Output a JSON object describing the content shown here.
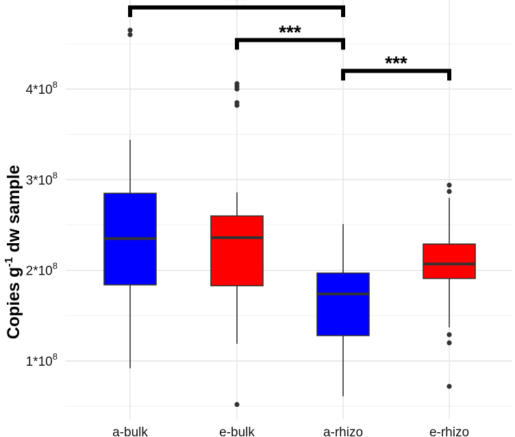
{
  "chart_data": {
    "type": "boxplot",
    "title": "",
    "xlabel": "",
    "ylabel": {
      "main": "Copies g",
      "superscript": "-1",
      "rest": " dw sample"
    },
    "ylim": [
      40000000,
      500000000
    ],
    "grid": true,
    "major_ticks": [
      100000000,
      200000000,
      300000000,
      400000000
    ],
    "minor_ticks": [
      50000000,
      150000000,
      250000000,
      350000000,
      450000000
    ],
    "tick_labels": [
      {
        "value": 100000000,
        "base": "1*10",
        "exp": "8"
      },
      {
        "value": 200000000,
        "base": "2*10",
        "exp": "8"
      },
      {
        "value": 300000000,
        "base": "3*10",
        "exp": "8"
      },
      {
        "value": 400000000,
        "base": "4*10",
        "exp": "8"
      }
    ],
    "categories": [
      "a-bulk",
      "e-bulk",
      "a-rhizo",
      "e-rhizo"
    ],
    "boxes": [
      {
        "label": "a-bulk",
        "whisker_low": 92000000,
        "q1": 184000000,
        "median": 235000000,
        "q3": 285000000,
        "whisker_high": 344000000,
        "outliers": [
          465000000,
          460000000
        ],
        "color": "#0000ff"
      },
      {
        "label": "e-bulk",
        "whisker_low": 119000000,
        "q1": 183000000,
        "median": 236000000,
        "q3": 260000000,
        "whisker_high": 286000000,
        "outliers": [
          406000000,
          403000000,
          400000000,
          385000000,
          382000000,
          52000000
        ],
        "color": "#ff0000"
      },
      {
        "label": "a-rhizo",
        "whisker_low": 61000000,
        "q1": 128000000,
        "median": 174000000,
        "q3": 197000000,
        "whisker_high": 251000000,
        "outliers": [],
        "color": "#0000ff"
      },
      {
        "label": "e-rhizo",
        "whisker_low": 137000000,
        "q1": 191000000,
        "median": 207000000,
        "q3": 229000000,
        "whisker_high": 280000000,
        "outliers": [
          294000000,
          287000000,
          129000000,
          120000000,
          72000000
        ],
        "color": "#ff0000"
      }
    ],
    "significance": [
      {
        "from": "a-bulk",
        "to": "a-rhizo",
        "label": "***",
        "y": 490000000
      },
      {
        "from": "e-bulk",
        "to": "a-rhizo",
        "label": "***",
        "y": 454000000
      },
      {
        "from": "a-rhizo",
        "to": "e-rhizo",
        "label": "***",
        "y": 420000000
      }
    ]
  }
}
